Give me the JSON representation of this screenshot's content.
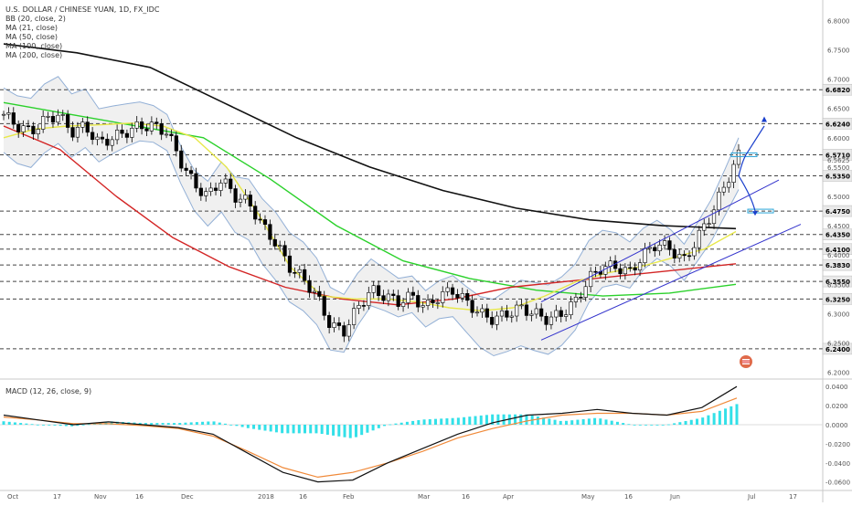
{
  "header": {
    "lines": [
      "U.S. DOLLAR / CHINESE YUAN, 1D, FX_IDC",
      "BB (20, close, 2)",
      "MA (21, close)",
      "MA (50, close)",
      "MA (100, close)",
      "MA (200, close)"
    ]
  },
  "macd_legend": "MACD (12, 26, close, 9)",
  "colors": {
    "bull": "#ffffff",
    "bear": "#000000",
    "ma21": "#e8e84a",
    "ma50": "#d32525",
    "ma100": "#2bd12b",
    "ma200": "#111111",
    "bb": "#93b0d6",
    "bbfill": "#ececec",
    "channel": "#3333cc",
    "macd": "#111111",
    "signal": "#f08a3a",
    "hist": "#33e0e8"
  },
  "price_axis": {
    "ticks": [
      "6.8000",
      "6.7500",
      "6.7000",
      "6.6500",
      "6.6000",
      "6.5625",
      "6.5500",
      "6.5000",
      "6.4500",
      "6.4000",
      "6.3500",
      "6.3000",
      "6.2500",
      "6.2000"
    ]
  },
  "macd_axis": {
    "ticks": [
      "0.0400",
      "0.0200",
      "0.0000",
      "-0.0200",
      "-0.0400",
      "-0.0600"
    ]
  },
  "time_axis": {
    "labels": [
      "Oct",
      "17",
      "Nov",
      "16",
      "Dec",
      "2018",
      "16",
      "Feb",
      "Mar",
      "16",
      "Apr",
      "May",
      "16",
      "Jun",
      "Jul",
      "17"
    ]
  },
  "chart_data": {
    "type": "candlestick",
    "symbol": "U.S. DOLLAR / CHINESE YUAN, 1D, FX_IDC",
    "ylim": [
      6.19,
      6.835
    ],
    "price_levels": [
      6.682,
      6.624,
      6.571,
      6.535,
      6.475,
      6.435,
      6.41,
      6.383,
      6.355,
      6.325,
      6.24
    ],
    "price_level_labels": [
      "6.6820",
      "6.6240",
      "6.5710",
      "6.5350",
      "6.4750",
      "6.4350",
      "6.4100",
      "6.3830",
      "6.3550",
      "6.3250",
      "6.2400"
    ],
    "current_price": 6.5625,
    "x_dates": [
      "2017-10-02",
      "2017-10-17",
      "2017-11-01",
      "2017-11-16",
      "2017-12-01",
      "2018-01-01",
      "2018-01-16",
      "2018-02-01",
      "2018-03-01",
      "2018-03-16",
      "2018-04-01",
      "2018-05-01",
      "2018-05-16",
      "2018-06-01",
      "2018-07-01",
      "2018-07-17"
    ],
    "close_path": [
      6.64,
      6.62,
      6.61,
      6.63,
      6.64,
      6.61,
      6.62,
      6.59,
      6.6,
      6.61,
      6.62,
      6.62,
      6.61,
      6.56,
      6.52,
      6.5,
      6.53,
      6.5,
      6.49,
      6.45,
      6.42,
      6.38,
      6.36,
      6.33,
      6.28,
      6.27,
      6.31,
      6.34,
      6.33,
      6.32,
      6.33,
      6.31,
      6.33,
      6.34,
      6.32,
      6.3,
      6.29,
      6.3,
      6.31,
      6.3,
      6.29,
      6.3,
      6.32,
      6.36,
      6.38,
      6.38,
      6.37,
      6.4,
      6.42,
      6.41,
      6.39,
      6.43,
      6.47,
      6.52,
      6.57
    ],
    "ma21": [
      6.6,
      6.615,
      6.62,
      6.622,
      6.625,
      6.62,
      6.6,
      6.55,
      6.47,
      6.38,
      6.33,
      6.325,
      6.325,
      6.32,
      6.31,
      6.305,
      6.31,
      6.33,
      6.355,
      6.37,
      6.38,
      6.395,
      6.41,
      6.44
    ],
    "ma50": [
      6.62,
      6.58,
      6.5,
      6.43,
      6.38,
      6.345,
      6.325,
      6.315,
      6.325,
      6.345,
      6.355,
      6.365,
      6.375,
      6.385
    ],
    "ma100": [
      6.66,
      6.64,
      6.62,
      6.6,
      6.53,
      6.45,
      6.39,
      6.36,
      6.34,
      6.33,
      6.335,
      6.35
    ],
    "ma200": [
      6.76,
      6.745,
      6.72,
      6.66,
      6.6,
      6.55,
      6.51,
      6.48,
      6.46,
      6.45,
      6.445
    ],
    "macd_ylim": [
      -0.068,
      0.045
    ],
    "macd_line": [
      0.01,
      0.005,
      0.0,
      0.003,
      0.0,
      -0.003,
      -0.01,
      -0.03,
      -0.05,
      -0.06,
      -0.058,
      -0.04,
      -0.025,
      -0.01,
      0.002,
      0.01,
      0.012,
      0.016,
      0.012,
      0.01,
      0.018,
      0.04
    ],
    "signal_line": [
      0.008,
      0.005,
      0.001,
      0.001,
      -0.001,
      -0.004,
      -0.012,
      -0.028,
      -0.045,
      -0.055,
      -0.05,
      -0.04,
      -0.028,
      -0.014,
      -0.004,
      0.004,
      0.01,
      0.012,
      0.012,
      0.01,
      0.014,
      0.028
    ],
    "channel": {
      "lower": [
        [
          6.255,
          "2018-04-10"
        ],
        [
          6.44,
          "2018-06-28"
        ]
      ],
      "upper": [
        [
          6.32,
          "2018-04-10"
        ],
        [
          6.5,
          "2018-06-28"
        ]
      ]
    }
  }
}
